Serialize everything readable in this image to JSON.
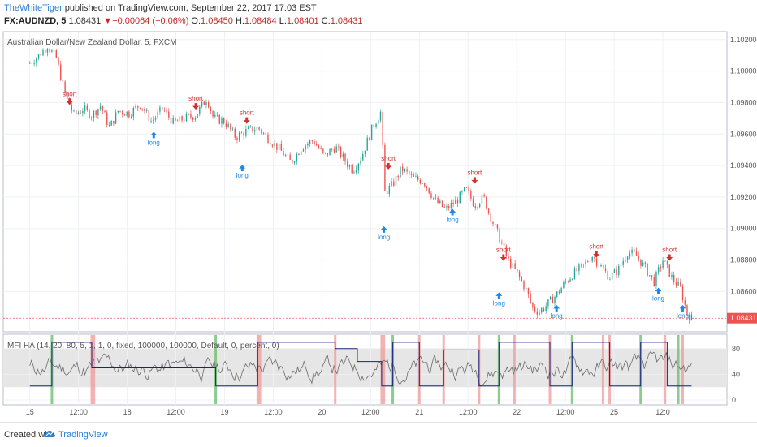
{
  "header": {
    "author": "TheWhiteTiger",
    "published_text": "published on TradingView.com, September 22, 2017 17:03 EST",
    "symbol": "FX:AUDNZD, 5",
    "last": "1.08431",
    "change": "−0.00064 (−0.06%)",
    "open_label": "O:",
    "open": "1.08450",
    "high_label": "H:",
    "high": "1.08484",
    "low_label": "L:",
    "low": "1.08401",
    "close_label": "C:",
    "close": "1.08431"
  },
  "main_pane": {
    "title": "Australian Dollar/New Zealand Dollar, 5, FXCM",
    "price_tag": "1.08431"
  },
  "indicator_pane": {
    "title": "MFI HA (14, 20, 80, 5, 1, 1, 0, fixed, 100000, 100000, Default, 0, percent, 0)"
  },
  "footer": {
    "created_with": "Created with",
    "brand": "TradingView"
  },
  "colors": {
    "up": "#26a69a",
    "down": "#ef5350",
    "short": "#d32f2f",
    "long": "#1e88e5",
    "mfi": "#666666",
    "position": "#1a237e",
    "band": "#e0e0e0"
  },
  "chart_data": [
    {
      "type": "candlestick",
      "title": "Australian Dollar/New Zealand Dollar, 5, FXCM",
      "x_ticks": [
        "15",
        "12:00",
        "18",
        "12:00",
        "19",
        "12:00",
        "20",
        "12:00",
        "21",
        "12:00",
        "22",
        "12:00",
        "25",
        "12:0"
      ],
      "y_ticks": [
        "1.10200",
        "1.10000",
        "1.09800",
        "1.09600",
        "1.09400",
        "1.09200",
        "1.09000",
        "1.08800",
        "1.08600",
        "1.08431"
      ],
      "ylim": [
        1.0836,
        1.1024
      ],
      "last_price": 1.08431,
      "price_path": [
        {
          "t": 0.0,
          "p": 1.1005
        },
        {
          "t": 0.4,
          "p": 1.101
        },
        {
          "t": 0.8,
          "p": 1.1016
        },
        {
          "t": 1.2,
          "p": 1.1008
        },
        {
          "t": 1.6,
          "p": 1.0985
        },
        {
          "t": 2.0,
          "p": 1.0972
        },
        {
          "t": 2.4,
          "p": 1.0976
        },
        {
          "t": 2.8,
          "p": 1.0972
        },
        {
          "t": 3.2,
          "p": 1.0978
        },
        {
          "t": 3.6,
          "p": 1.0964
        },
        {
          "t": 4.0,
          "p": 1.0975
        },
        {
          "t": 4.5,
          "p": 1.0973
        },
        {
          "t": 5.0,
          "p": 1.0979
        },
        {
          "t": 5.5,
          "p": 1.0968
        },
        {
          "t": 6.0,
          "p": 1.0976
        },
        {
          "t": 6.5,
          "p": 1.0967
        },
        {
          "t": 7.0,
          "p": 1.097
        },
        {
          "t": 7.5,
          "p": 1.0972
        },
        {
          "t": 8.0,
          "p": 1.0983
        },
        {
          "t": 8.3,
          "p": 1.097
        },
        {
          "t": 8.8,
          "p": 1.0968
        },
        {
          "t": 9.3,
          "p": 1.0958
        },
        {
          "t": 9.8,
          "p": 1.0962
        },
        {
          "t": 10.3,
          "p": 1.0964
        },
        {
          "t": 10.8,
          "p": 1.0957
        },
        {
          "t": 11.3,
          "p": 1.095
        },
        {
          "t": 11.8,
          "p": 1.0942
        },
        {
          "t": 12.3,
          "p": 1.0952
        },
        {
          "t": 12.8,
          "p": 1.0956
        },
        {
          "t": 13.3,
          "p": 1.0946
        },
        {
          "t": 13.8,
          "p": 1.0952
        },
        {
          "t": 14.3,
          "p": 1.0942
        },
        {
          "t": 14.6,
          "p": 1.0937
        },
        {
          "t": 15.0,
          "p": 1.0946
        },
        {
          "t": 15.5,
          "p": 1.0965
        },
        {
          "t": 15.9,
          "p": 1.0975
        },
        {
          "t": 16.0,
          "p": 1.0922
        },
        {
          "t": 16.4,
          "p": 1.0928
        },
        {
          "t": 16.8,
          "p": 1.0938
        },
        {
          "t": 17.3,
          "p": 1.0932
        },
        {
          "t": 17.8,
          "p": 1.093
        },
        {
          "t": 18.3,
          "p": 1.0918
        },
        {
          "t": 18.8,
          "p": 1.0912
        },
        {
          "t": 19.3,
          "p": 1.0918
        },
        {
          "t": 19.7,
          "p": 1.0925
        },
        {
          "t": 20.1,
          "p": 1.0915
        },
        {
          "t": 20.5,
          "p": 1.092
        },
        {
          "t": 20.8,
          "p": 1.0908
        },
        {
          "t": 21.2,
          "p": 1.0895
        },
        {
          "t": 21.6,
          "p": 1.088
        },
        {
          "t": 22.0,
          "p": 1.0872
        },
        {
          "t": 22.4,
          "p": 1.0862
        },
        {
          "t": 22.7,
          "p": 1.085
        },
        {
          "t": 23.0,
          "p": 1.0847
        },
        {
          "t": 23.4,
          "p": 1.0852
        },
        {
          "t": 23.8,
          "p": 1.0858
        },
        {
          "t": 24.2,
          "p": 1.0866
        },
        {
          "t": 24.6,
          "p": 1.0872
        },
        {
          "t": 25.0,
          "p": 1.0876
        },
        {
          "t": 25.4,
          "p": 1.0883
        },
        {
          "t": 25.8,
          "p": 1.0876
        },
        {
          "t": 26.2,
          "p": 1.0869
        },
        {
          "t": 26.6,
          "p": 1.0874
        },
        {
          "t": 27.0,
          "p": 1.0885
        },
        {
          "t": 27.4,
          "p": 1.0883
        },
        {
          "t": 27.8,
          "p": 1.0875
        },
        {
          "t": 28.2,
          "p": 1.0866
        },
        {
          "t": 28.6,
          "p": 1.088
        },
        {
          "t": 29.0,
          "p": 1.0869
        },
        {
          "t": 29.4,
          "p": 1.0862
        },
        {
          "t": 29.7,
          "p": 1.0846
        },
        {
          "t": 29.9,
          "p": 1.08431
        }
      ],
      "signals": [
        {
          "label": "short",
          "t": 1.8,
          "p": 1.0978
        },
        {
          "label": "long",
          "t": 5.6,
          "p": 1.0962
        },
        {
          "label": "short",
          "t": 7.5,
          "p": 1.0975
        },
        {
          "label": "short",
          "t": 9.8,
          "p": 1.0966
        },
        {
          "label": "long",
          "t": 9.6,
          "p": 1.0941
        },
        {
          "label": "short",
          "t": 16.2,
          "p": 1.0937
        },
        {
          "label": "long",
          "t": 16.0,
          "p": 1.0902
        },
        {
          "label": "long",
          "t": 19.1,
          "p": 1.0913
        },
        {
          "label": "short",
          "t": 20.1,
          "p": 1.0928
        },
        {
          "label": "short",
          "t": 21.4,
          "p": 1.0879
        },
        {
          "label": "long",
          "t": 21.2,
          "p": 1.086
        },
        {
          "label": "long",
          "t": 23.8,
          "p": 1.0852
        },
        {
          "label": "short",
          "t": 25.6,
          "p": 1.0881
        },
        {
          "label": "long",
          "t": 28.4,
          "p": 1.0863
        },
        {
          "label": "short",
          "t": 28.9,
          "p": 1.0879
        },
        {
          "label": "long",
          "t": 29.5,
          "p": 1.0852
        }
      ]
    },
    {
      "type": "line",
      "title": "MFI HA (14, 20, 80, 5, 1, 1, 0, fixed, 100000, 100000, Default, 0, percent, 0)",
      "y_ticks": [
        "80",
        "40",
        "0"
      ],
      "ylim": [
        -5,
        100
      ],
      "band": [
        20,
        80
      ],
      "position_steps": [
        {
          "t": 0.0,
          "v": 22
        },
        {
          "t": 1.0,
          "v": 22
        },
        {
          "t": 1.0,
          "v": 90
        },
        {
          "t": 2.8,
          "v": 90
        },
        {
          "t": 2.8,
          "v": 50
        },
        {
          "t": 8.4,
          "v": 50
        },
        {
          "t": 8.4,
          "v": 22
        },
        {
          "t": 10.3,
          "v": 22
        },
        {
          "t": 10.3,
          "v": 90
        },
        {
          "t": 13.8,
          "v": 90
        },
        {
          "t": 13.8,
          "v": 80
        },
        {
          "t": 14.8,
          "v": 80
        },
        {
          "t": 14.8,
          "v": 60
        },
        {
          "t": 15.9,
          "v": 60
        },
        {
          "t": 15.9,
          "v": 22
        },
        {
          "t": 16.4,
          "v": 22
        },
        {
          "t": 16.4,
          "v": 90
        },
        {
          "t": 17.6,
          "v": 90
        },
        {
          "t": 17.6,
          "v": 22
        },
        {
          "t": 18.7,
          "v": 22
        },
        {
          "t": 18.7,
          "v": 78
        },
        {
          "t": 20.3,
          "v": 78
        },
        {
          "t": 20.3,
          "v": 22
        },
        {
          "t": 21.2,
          "v": 22
        },
        {
          "t": 21.2,
          "v": 90
        },
        {
          "t": 23.5,
          "v": 90
        },
        {
          "t": 23.5,
          "v": 22
        },
        {
          "t": 24.5,
          "v": 22
        },
        {
          "t": 24.5,
          "v": 90
        },
        {
          "t": 26.2,
          "v": 90
        },
        {
          "t": 26.2,
          "v": 22
        },
        {
          "t": 27.6,
          "v": 22
        },
        {
          "t": 27.6,
          "v": 90
        },
        {
          "t": 28.8,
          "v": 90
        },
        {
          "t": 28.8,
          "v": 22
        },
        {
          "t": 29.9,
          "v": 22
        }
      ],
      "signal_bars": [
        {
          "t": 1.0,
          "kind": "buy"
        },
        {
          "t": 2.8,
          "kind": "sell"
        },
        {
          "t": 2.9,
          "kind": "sell"
        },
        {
          "t": 8.4,
          "kind": "buy"
        },
        {
          "t": 10.3,
          "kind": "sell"
        },
        {
          "t": 10.4,
          "kind": "sell"
        },
        {
          "t": 13.8,
          "kind": "sell"
        },
        {
          "t": 15.9,
          "kind": "sell"
        },
        {
          "t": 16.0,
          "kind": "sell"
        },
        {
          "t": 16.4,
          "kind": "buy"
        },
        {
          "t": 17.6,
          "kind": "sell"
        },
        {
          "t": 18.7,
          "kind": "sell"
        },
        {
          "t": 20.3,
          "kind": "sell"
        },
        {
          "t": 21.2,
          "kind": "buy"
        },
        {
          "t": 21.9,
          "kind": "sell"
        },
        {
          "t": 23.5,
          "kind": "sell"
        },
        {
          "t": 24.5,
          "kind": "buy"
        },
        {
          "t": 25.9,
          "kind": "sell"
        },
        {
          "t": 26.2,
          "kind": "sell"
        },
        {
          "t": 27.6,
          "kind": "buy"
        },
        {
          "t": 28.7,
          "kind": "sell"
        },
        {
          "t": 29.3,
          "kind": "buy"
        },
        {
          "t": 29.5,
          "kind": "sell"
        }
      ]
    }
  ]
}
